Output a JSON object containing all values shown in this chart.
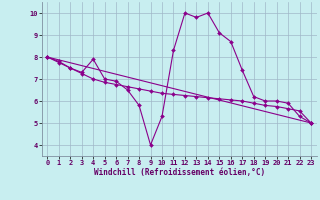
{
  "xlabel": "Windchill (Refroidissement éolien,°C)",
  "ylabel": "",
  "background_color": "#c8eef0",
  "line_color": "#8b008b",
  "grid_color": "#a0b8c8",
  "x_ticks": [
    0,
    1,
    2,
    3,
    4,
    5,
    6,
    7,
    8,
    9,
    10,
    11,
    12,
    13,
    14,
    15,
    16,
    17,
    18,
    19,
    20,
    21,
    22,
    23
  ],
  "y_ticks": [
    4,
    5,
    6,
    7,
    8,
    9,
    10
  ],
  "ylim": [
    3.5,
    10.5
  ],
  "xlim": [
    -0.5,
    23.5
  ],
  "series1": {
    "x": [
      0,
      1,
      2,
      3,
      4,
      5,
      6,
      7,
      8,
      9,
      10,
      11,
      12,
      13,
      14,
      15,
      16,
      17,
      18,
      19,
      20,
      21,
      22,
      23
    ],
    "y": [
      8.0,
      7.8,
      7.5,
      7.3,
      7.9,
      7.0,
      6.9,
      6.5,
      5.8,
      4.0,
      5.3,
      8.3,
      10.0,
      9.8,
      10.0,
      9.1,
      8.7,
      7.4,
      6.2,
      6.0,
      6.0,
      5.9,
      5.3,
      5.0
    ]
  },
  "series2": {
    "x": [
      0,
      1,
      2,
      3,
      4,
      5,
      6,
      7,
      8,
      9,
      10,
      11,
      12,
      13,
      14,
      15,
      16,
      17,
      18,
      19,
      20,
      21,
      22,
      23
    ],
    "y": [
      8.0,
      7.75,
      7.5,
      7.25,
      7.0,
      6.85,
      6.75,
      6.65,
      6.55,
      6.45,
      6.35,
      6.3,
      6.25,
      6.2,
      6.15,
      6.1,
      6.05,
      6.0,
      5.9,
      5.8,
      5.75,
      5.65,
      5.55,
      5.0
    ]
  },
  "series3": {
    "x": [
      0,
      23
    ],
    "y": [
      8.0,
      5.0
    ]
  },
  "marker": "D",
  "markersize": 2.0,
  "linewidth": 0.8,
  "tick_fontsize": 5.0,
  "xlabel_fontsize": 5.5
}
